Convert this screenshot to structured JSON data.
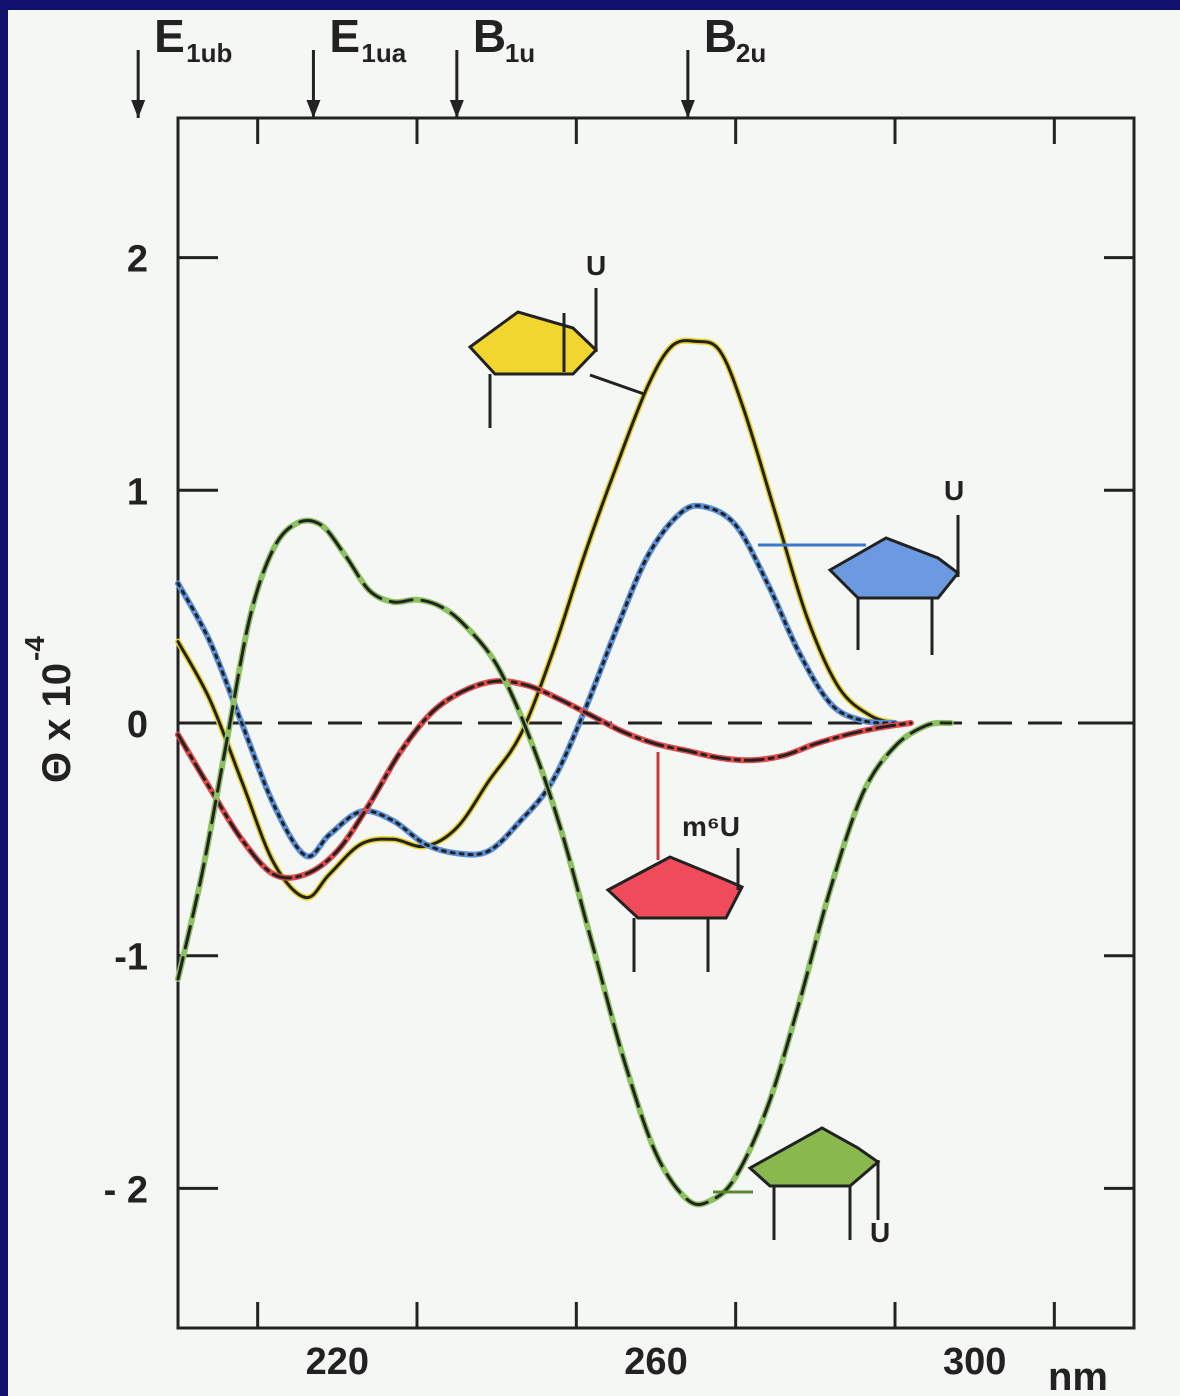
{
  "chart_data": {
    "type": "line",
    "xlabel": "nm",
    "ylabel": "Θ x 10",
    "ylabel_exponent": "-4",
    "xlim": [
      200,
      320
    ],
    "ylim": [
      -2.6,
      2.6
    ],
    "x_ticks": [
      220,
      260,
      300
    ],
    "y_ticks": [
      {
        "value": 2,
        "label": "2"
      },
      {
        "value": 1,
        "label": "1"
      },
      {
        "value": 0,
        "label": "0"
      },
      {
        "value": -1,
        "label": "-1"
      },
      {
        "value": -2,
        "label": "- 2"
      }
    ],
    "band_markers": [
      {
        "main": "E",
        "sub": "1ub",
        "x": 195
      },
      {
        "main": "E",
        "sub": "1ua",
        "x": 217
      },
      {
        "main": "B",
        "sub": "1u",
        "x": 235
      },
      {
        "main": "B",
        "sub": "2u",
        "x": 264
      }
    ],
    "series": [
      {
        "label": "U",
        "color": "#e6d22a",
        "style": "solid",
        "x": [
          200,
          204,
          208,
          212,
          216,
          219,
          223,
          227,
          231,
          235,
          239,
          243,
          247,
          251,
          255,
          259,
          262,
          265,
          268,
          271,
          275,
          279,
          283,
          287,
          290
        ],
        "y": [
          0.35,
          0.1,
          -0.25,
          -0.6,
          -0.75,
          -0.65,
          -0.52,
          -0.5,
          -0.53,
          -0.45,
          -0.25,
          -0.05,
          0.3,
          0.72,
          1.1,
          1.45,
          1.62,
          1.64,
          1.6,
          1.35,
          0.9,
          0.45,
          0.15,
          0.03,
          0
        ]
      },
      {
        "label": "U",
        "color": "#5a8fd8",
        "style": "dotted",
        "x": [
          200,
          204,
          208,
          212,
          216,
          219,
          223,
          227,
          231,
          235,
          239,
          243,
          247,
          251,
          255,
          259,
          263,
          266,
          270,
          274,
          278,
          282,
          286,
          290
        ],
        "y": [
          0.6,
          0.35,
          0.0,
          -0.35,
          -0.57,
          -0.48,
          -0.38,
          -0.42,
          -0.52,
          -0.56,
          -0.55,
          -0.42,
          -0.25,
          0.05,
          0.4,
          0.72,
          0.9,
          0.93,
          0.85,
          0.6,
          0.3,
          0.08,
          0.01,
          0
        ]
      },
      {
        "label": "m⁶U",
        "color": "#e04a4a",
        "style": "dashdot",
        "x": [
          200,
          204,
          208,
          212,
          216,
          220,
          224,
          228,
          232,
          236,
          240,
          244,
          248,
          252,
          256,
          260,
          264,
          268,
          272,
          276,
          280,
          284,
          288,
          292
        ],
        "y": [
          -0.05,
          -0.28,
          -0.5,
          -0.65,
          -0.65,
          -0.55,
          -0.35,
          -0.12,
          0.05,
          0.14,
          0.18,
          0.16,
          0.1,
          0.03,
          -0.04,
          -0.09,
          -0.12,
          -0.15,
          -0.16,
          -0.14,
          -0.09,
          -0.05,
          -0.02,
          0
        ]
      },
      {
        "label": "U",
        "color": "#8cc060",
        "style": "dashed",
        "x": [
          200,
          203,
          206,
          209,
          212,
          215,
          218,
          221,
          224,
          227,
          230,
          233,
          236,
          240,
          244,
          248,
          252,
          256,
          260,
          264,
          267,
          270,
          274,
          278,
          282,
          286,
          290,
          294,
          297
        ],
        "y": [
          -1.1,
          -0.65,
          -0.1,
          0.45,
          0.75,
          0.86,
          0.85,
          0.72,
          0.57,
          0.52,
          0.53,
          0.5,
          0.42,
          0.25,
          -0.05,
          -0.45,
          -0.95,
          -1.45,
          -1.85,
          -2.05,
          -2.05,
          -1.95,
          -1.65,
          -1.2,
          -0.7,
          -0.3,
          -0.1,
          -0.01,
          0
        ]
      }
    ]
  },
  "structure_labels": {
    "yellow": "U",
    "blue": "U",
    "red": "m⁶U",
    "green": "U"
  },
  "colors": {
    "background_outer": "#10106e",
    "panel": "#f5f7f4",
    "yellow_fill": "#f0d62e",
    "blue_fill": "#6c9ae0",
    "red_fill": "#f04b5a",
    "green_fill": "#88b84e"
  }
}
